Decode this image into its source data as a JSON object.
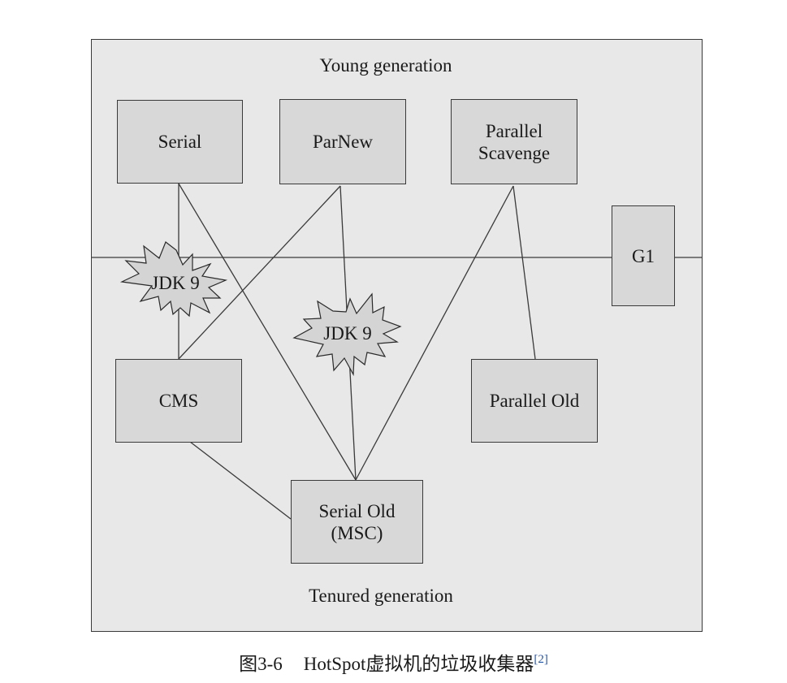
{
  "labels": {
    "young": "Young generation",
    "tenured": "Tenured generation"
  },
  "collectors": {
    "serial": "Serial",
    "parnew": "ParNew",
    "parallel_scavenge": "Parallel\nScavenge",
    "g1": "G1",
    "cms": "CMS",
    "parallel_old": "Parallel Old",
    "serial_old": "Serial Old\n(MSC)"
  },
  "badges": {
    "jdk9_left": "JDK 9",
    "jdk9_center": "JDK 9"
  },
  "caption": {
    "number": "图3-6",
    "text": "HotSpot虚拟机的垃圾收集器",
    "ref": "[2]"
  }
}
